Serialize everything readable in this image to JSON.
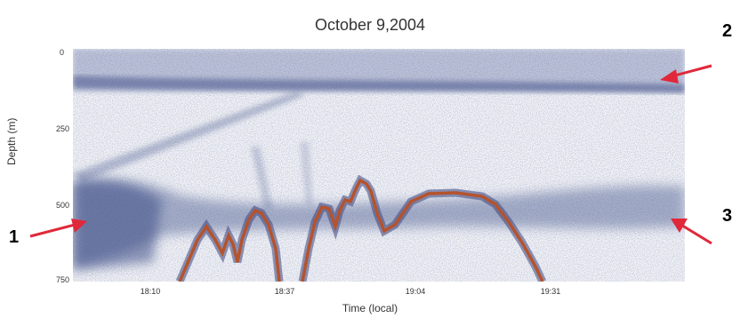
{
  "figure": {
    "title": "October 9,2004",
    "y_axis_label": "Depth (m)",
    "x_axis_label": "Time (local)",
    "y_ticks": [
      "0",
      "250",
      "500",
      "750"
    ],
    "x_ticks": [
      "18:10",
      "18:37",
      "19:04",
      "19:31"
    ],
    "markers": [
      "1",
      "2",
      "3"
    ],
    "colors": {
      "backscatter": "#4a5a8f",
      "seafloor": "#b5532d",
      "arrow": "#e0283a"
    }
  }
}
